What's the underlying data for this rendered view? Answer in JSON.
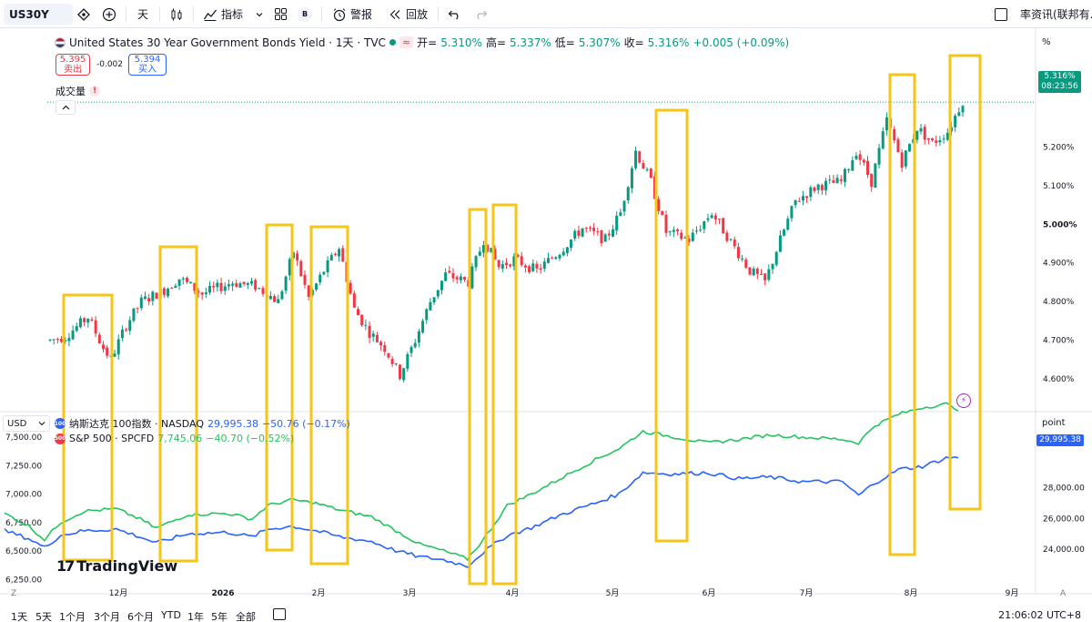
{
  "toolbar": {
    "symbol": "US30Y",
    "interval": "天",
    "indicators_label": "指标",
    "alert_label": "警报",
    "replay_label": "回放",
    "b_badge": "B",
    "right_label": "率资讯(联邦有..."
  },
  "legend": {
    "title": "United States 30 Year Government Bonds Yield · 1天 · TVC",
    "approx": "≈",
    "open_label": "开=",
    "open": "5.310%",
    "high_label": "高=",
    "high": "5.337%",
    "low_label": "低=",
    "low": "5.307%",
    "close_label": "收=",
    "close": "5.316%",
    "change": "+0.005 (+0.09%)"
  },
  "quotes": {
    "sell_price": "5.395",
    "sell_label": "卖出",
    "spread": "-0.002",
    "buy_price": "5.394",
    "buy_label": "买入"
  },
  "volume_label": "成交量",
  "volume_warn": "!",
  "nasdaq": {
    "badge": "100",
    "label": "纳斯达克 100指数 · NASDAQ",
    "value": "29,995.38",
    "change": "−50.76 (−0.17%)"
  },
  "spx": {
    "badge": "500",
    "label": "S&P 500 · SPCFD",
    "value": "7,745.06",
    "change": "−40.70 (−0.52%)"
  },
  "currency": "USD",
  "point_label": "point",
  "pct_label": "%",
  "price_tag": {
    "value": "5.316%",
    "countdown": "08:23:56"
  },
  "point_tag": "29,995.38",
  "brand": "TradingView",
  "time_ranges": [
    "1天",
    "5天",
    "1个月",
    "3个月",
    "6个月",
    "YTD",
    "1年",
    "5年",
    "全部"
  ],
  "clock": "21:06:02 UTC+8",
  "corner_z": "Z",
  "corner_a": "A",
  "colors": {
    "up": "#089981",
    "down": "#f23645",
    "nasdaq": "#2962ff",
    "spx": "#22c55e",
    "highlight": "#f5c518"
  },
  "chart_data": [
    {
      "type": "candlestick",
      "title": "United States 30 Year Government Bonds Yield · 1天 · TVC",
      "x_ticks": [
        "12月",
        "2026",
        "2月",
        "3月",
        "4月",
        "5月",
        "6月",
        "7月",
        "8月",
        "9月"
      ],
      "y_ticks": [
        "4.600%",
        "4.700%",
        "4.800%",
        "4.900%",
        "5.000%",
        "5.100%",
        "5.200%"
      ],
      "ylim": [
        4.52,
        5.38
      ],
      "last": 5.316,
      "waypoints": [
        [
          0,
          4.7
        ],
        [
          4,
          4.71
        ],
        [
          10,
          4.76
        ],
        [
          14,
          4.68
        ],
        [
          16,
          4.65
        ],
        [
          20,
          4.74
        ],
        [
          24,
          4.8
        ],
        [
          30,
          4.83
        ],
        [
          34,
          4.86
        ],
        [
          40,
          4.82
        ],
        [
          48,
          4.85
        ],
        [
          54,
          4.84
        ],
        [
          60,
          4.8
        ],
        [
          64,
          4.93
        ],
        [
          68,
          4.81
        ],
        [
          72,
          4.88
        ],
        [
          76,
          4.94
        ],
        [
          80,
          4.78
        ],
        [
          84,
          4.72
        ],
        [
          88,
          4.68
        ],
        [
          92,
          4.61
        ],
        [
          96,
          4.7
        ],
        [
          100,
          4.8
        ],
        [
          104,
          4.87
        ],
        [
          110,
          4.85
        ],
        [
          114,
          4.96
        ],
        [
          118,
          4.89
        ],
        [
          122,
          4.91
        ],
        [
          128,
          4.88
        ],
        [
          134,
          4.93
        ],
        [
          140,
          4.99
        ],
        [
          146,
          4.96
        ],
        [
          150,
          5.03
        ],
        [
          154,
          5.19
        ],
        [
          158,
          5.11
        ],
        [
          162,
          4.98
        ],
        [
          168,
          4.96
        ],
        [
          174,
          5.03
        ],
        [
          178,
          4.97
        ],
        [
          184,
          4.88
        ],
        [
          188,
          4.85
        ],
        [
          192,
          4.96
        ],
        [
          196,
          5.06
        ],
        [
          202,
          5.1
        ],
        [
          208,
          5.11
        ],
        [
          212,
          5.19
        ],
        [
          216,
          5.11
        ],
        [
          220,
          5.27
        ],
        [
          224,
          5.16
        ],
        [
          228,
          5.25
        ],
        [
          232,
          5.21
        ],
        [
          236,
          5.24
        ],
        [
          240,
          5.32
        ]
      ]
    },
    {
      "type": "line",
      "series": [
        {
          "name": "纳斯达克 100指数 · NASDAQ",
          "last": 29995.38
        },
        {
          "name": "S&P 500 · SPCFD",
          "last": 7745.06
        }
      ],
      "left_ticks": [
        "7,500.00",
        "7,250.00",
        "7,000.00",
        "6,750.00",
        "6,500.00",
        "6,250.00"
      ],
      "left_lim": [
        6180,
        7700
      ],
      "right_ticks": [
        "28,000.00",
        "26,000.00",
        "24,000.00"
      ],
      "right_lim": [
        21500,
        32800
      ],
      "spx_waypoints": [
        [
          0,
          6830
        ],
        [
          6,
          6720
        ],
        [
          10,
          6600
        ],
        [
          14,
          6750
        ],
        [
          20,
          6850
        ],
        [
          28,
          6870
        ],
        [
          34,
          6780
        ],
        [
          38,
          6700
        ],
        [
          46,
          6820
        ],
        [
          56,
          6830
        ],
        [
          62,
          6780
        ],
        [
          66,
          6900
        ],
        [
          72,
          6950
        ],
        [
          78,
          6920
        ],
        [
          84,
          6860
        ],
        [
          92,
          6800
        ],
        [
          98,
          6680
        ],
        [
          104,
          6560
        ],
        [
          110,
          6500
        ],
        [
          116,
          6430
        ],
        [
          120,
          6600
        ],
        [
          126,
          6900
        ],
        [
          132,
          7000
        ],
        [
          140,
          7150
        ],
        [
          148,
          7300
        ],
        [
          154,
          7400
        ],
        [
          160,
          7550
        ],
        [
          168,
          7500
        ],
        [
          176,
          7450
        ],
        [
          184,
          7480
        ],
        [
          192,
          7520
        ],
        [
          200,
          7500
        ],
        [
          210,
          7480
        ],
        [
          214,
          7450
        ],
        [
          218,
          7600
        ],
        [
          224,
          7700
        ],
        [
          230,
          7760
        ],
        [
          236,
          7790
        ],
        [
          239,
          7745
        ]
      ],
      "ndx_waypoints": [
        [
          0,
          25200
        ],
        [
          6,
          24700
        ],
        [
          10,
          24100
        ],
        [
          14,
          24900
        ],
        [
          20,
          25200
        ],
        [
          28,
          25300
        ],
        [
          34,
          24800
        ],
        [
          38,
          24400
        ],
        [
          46,
          25000
        ],
        [
          56,
          25100
        ],
        [
          62,
          24800
        ],
        [
          66,
          25300
        ],
        [
          72,
          25500
        ],
        [
          78,
          25200
        ],
        [
          84,
          24800
        ],
        [
          92,
          24500
        ],
        [
          98,
          23900
        ],
        [
          104,
          23500
        ],
        [
          110,
          23300
        ],
        [
          116,
          22900
        ],
        [
          120,
          23800
        ],
        [
          126,
          24900
        ],
        [
          132,
          25400
        ],
        [
          140,
          26300
        ],
        [
          148,
          27000
        ],
        [
          154,
          27600
        ],
        [
          160,
          29000
        ],
        [
          168,
          28900
        ],
        [
          176,
          29000
        ],
        [
          184,
          28600
        ],
        [
          192,
          28700
        ],
        [
          200,
          28400
        ],
        [
          210,
          28400
        ],
        [
          214,
          27500
        ],
        [
          218,
          28300
        ],
        [
          224,
          29200
        ],
        [
          230,
          29400
        ],
        [
          236,
          29950
        ],
        [
          239,
          29995
        ]
      ]
    }
  ]
}
